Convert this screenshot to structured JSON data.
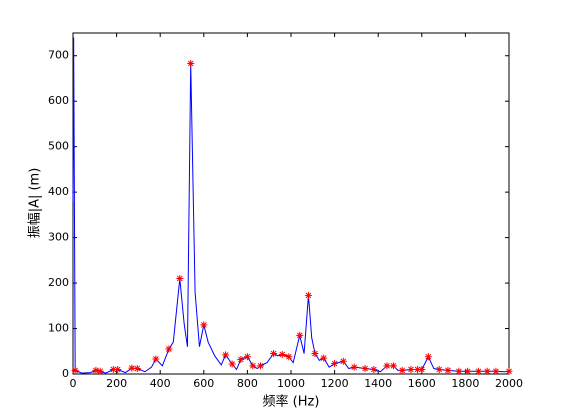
{
  "chart_data": {
    "type": "line",
    "xlabel": "频率 (Hz)",
    "ylabel": "振幅|A| (m)",
    "xlim": [
      0,
      2000
    ],
    "ylim": [
      0,
      750
    ],
    "xticks": [
      0,
      200,
      400,
      600,
      800,
      1000,
      1200,
      1400,
      1600,
      1800,
      2000
    ],
    "yticks": [
      0,
      100,
      200,
      300,
      400,
      500,
      600,
      700
    ],
    "grid": false,
    "series": [
      {
        "color": "#0000ff",
        "marker": "none",
        "x": [
          0,
          3,
          10,
          40,
          80,
          105,
          125,
          150,
          185,
          205,
          240,
          270,
          295,
          330,
          360,
          380,
          410,
          440,
          460,
          490,
          510,
          525,
          540,
          560,
          580,
          600,
          620,
          650,
          680,
          700,
          730,
          750,
          770,
          800,
          825,
          845,
          860,
          890,
          920,
          940,
          960,
          990,
          1010,
          1040,
          1060,
          1080,
          1095,
          1110,
          1130,
          1150,
          1175,
          1200,
          1240,
          1265,
          1290,
          1340,
          1380,
          1410,
          1440,
          1470,
          1490,
          1510,
          1550,
          1580,
          1600,
          1630,
          1655,
          1680,
          1720,
          1770,
          1810,
          1860,
          1900,
          1940,
          1980,
          2000
        ],
        "values": [
          380,
          740,
          8,
          2,
          3,
          8,
          6,
          2,
          10,
          10,
          3,
          13,
          12,
          5,
          15,
          33,
          18,
          55,
          70,
          210,
          110,
          60,
          683,
          180,
          60,
          108,
          70,
          40,
          20,
          42,
          22,
          10,
          32,
          38,
          18,
          12,
          18,
          25,
          45,
          40,
          43,
          38,
          25,
          85,
          45,
          173,
          80,
          45,
          30,
          35,
          15,
          23,
          28,
          12,
          15,
          12,
          10,
          5,
          18,
          18,
          8,
          8,
          10,
          10,
          10,
          38,
          12,
          10,
          8,
          6,
          6,
          6,
          6,
          6,
          5,
          6
        ]
      },
      {
        "color": "#ff0000",
        "marker": "*",
        "x": [
          10,
          105,
          125,
          185,
          205,
          270,
          295,
          380,
          440,
          490,
          540,
          600,
          700,
          730,
          770,
          800,
          825,
          860,
          920,
          960,
          990,
          1040,
          1080,
          1110,
          1150,
          1200,
          1240,
          1290,
          1340,
          1380,
          1440,
          1470,
          1510,
          1550,
          1580,
          1600,
          1630,
          1680,
          1720,
          1770,
          1810,
          1860,
          1900,
          1940,
          2000
        ],
        "values": [
          8,
          8,
          6,
          10,
          10,
          13,
          12,
          33,
          55,
          210,
          683,
          108,
          42,
          22,
          32,
          38,
          18,
          18,
          45,
          43,
          38,
          85,
          173,
          45,
          35,
          23,
          28,
          15,
          12,
          10,
          18,
          18,
          8,
          10,
          10,
          10,
          38,
          10,
          8,
          6,
          6,
          6,
          6,
          6,
          6
        ]
      }
    ]
  }
}
